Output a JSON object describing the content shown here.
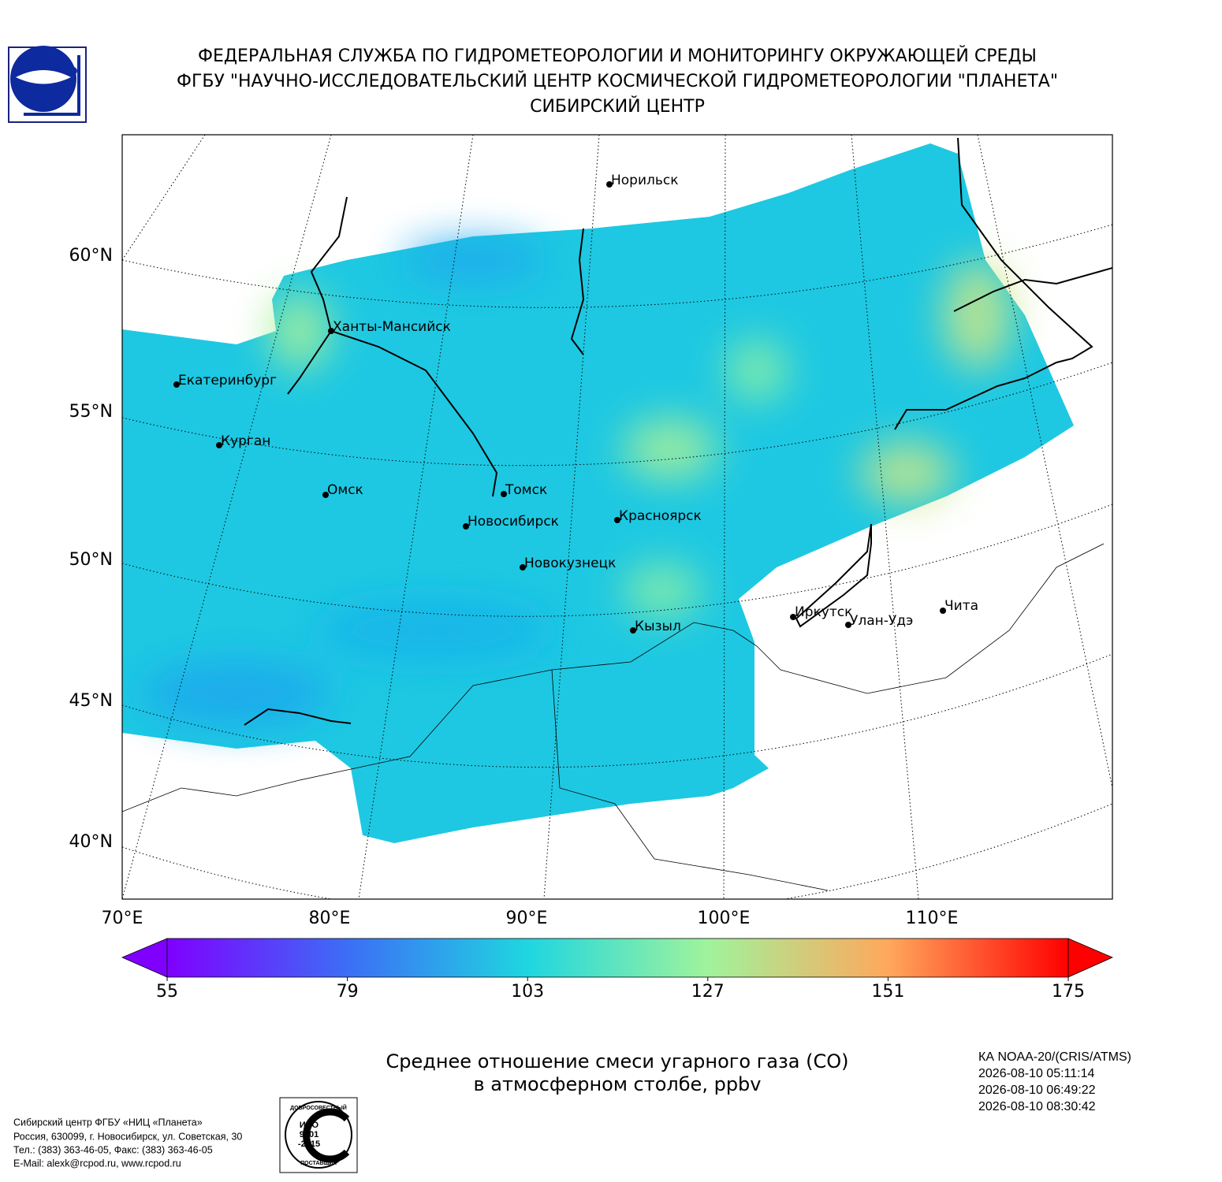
{
  "header": {
    "lines": [
      "ФЕДЕРАЛЬНАЯ СЛУЖБА ПО ГИДРОМЕТЕОРОЛОГИИ И МОНИТОРИНГУ ОКРУЖАЮЩЕЙ СРЕДЫ",
      "ФГБУ \"НАУЧНО-ИССЛЕДОВАТЕЛЬСКИЙ ЦЕНТР КОСМИЧЕСКОЙ ГИДРОМЕТЕОРОЛОГИИ \"ПЛАНЕТА\"",
      "СИБИРСКИЙ ЦЕНТР"
    ]
  },
  "map": {
    "lat_labels": [
      "60°N",
      "55°N",
      "50°N",
      "45°N",
      "40°N"
    ],
    "lon_labels": [
      "70°E",
      "80°E",
      "90°E",
      "100°E",
      "110°E"
    ],
    "cities": [
      "Норильск",
      "Ханты-Мансийск",
      "Екатеринбург",
      "Курган",
      "Омск",
      "Томск",
      "Новосибирск",
      "Красноярск",
      "Новокузнецк",
      "Кызыл",
      "Иркутск",
      "Улан-Удэ",
      "Чита"
    ]
  },
  "colorbar": {
    "range": [
      55,
      175
    ],
    "ticks": [
      55,
      79,
      103,
      127,
      151,
      175
    ]
  },
  "caption": {
    "lines": [
      "Среднее отношение смеси угарного газа (CO)",
      "в атмосферном столбе, ppbv"
    ]
  },
  "satellite": {
    "lines": [
      "КА NOAA-20/(CRIS/ATMS)",
      "2026-08-10 05:11:14",
      "2026-08-10 06:49:22",
      "2026-08-10 08:30:42"
    ]
  },
  "footer": {
    "lines": [
      "Сибирский центр ФГБУ «НИЦ «Планета»",
      "Россия, 630099, г. Новосибирск, ул. Советская, 30",
      "Тел.: (383) 363-46-05, Факс: (383) 363-46-05",
      "E-Mail: alexk@rcpod.ru, www.rcpod.ru"
    ]
  },
  "iso_logo": {
    "top": "ДОБРОСОВЕСТНЫЙ",
    "center": [
      "ИСО",
      "9001",
      "-2015"
    ],
    "bottom": "ПОСТАВЩИК"
  }
}
